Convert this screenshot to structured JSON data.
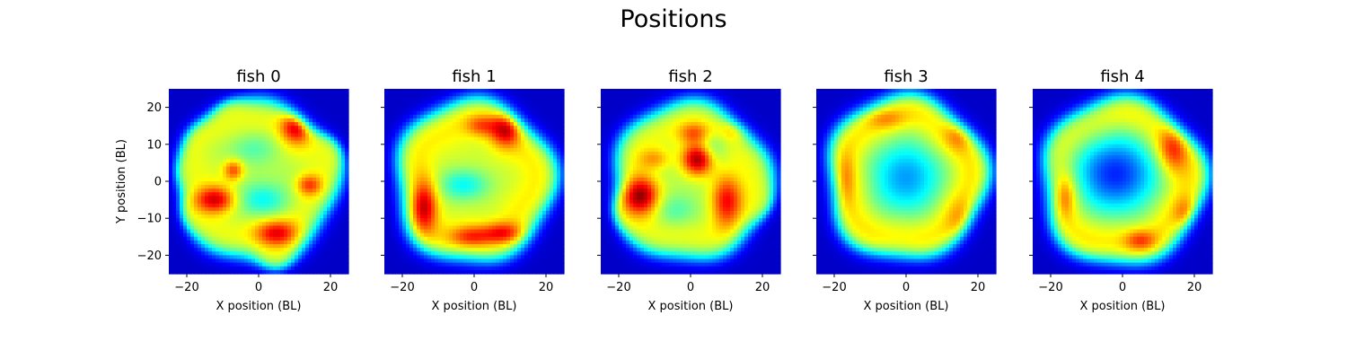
{
  "title": "Positions",
  "chart_data": {
    "type": "heatmap",
    "colormap": "jet",
    "xlabel": "X position (BL)",
    "ylabel": "Y position (BL)",
    "xlim": [
      -25,
      25
    ],
    "ylim": [
      -25,
      25
    ],
    "xticks": [
      "−20",
      "0",
      "20"
    ],
    "yticks": [
      "20",
      "10",
      "0",
      "−10",
      "−20"
    ],
    "xtick_values": [
      -20,
      0,
      20
    ],
    "ytick_values": [
      20,
      10,
      0,
      -10,
      -20
    ],
    "panels": [
      {
        "title": "fish 0",
        "disk": {
          "cx": 0,
          "cy": 0,
          "r": 21.5,
          "level": 0.55,
          "bumps": [
            [
              -18,
              -8,
              3.5
            ],
            [
              -15,
              10,
              3.5
            ],
            [
              19,
              8,
              3.5
            ],
            [
              -8,
              18,
              3.5
            ],
            [
              5,
              -21,
              3.5
            ],
            [
              -20,
              2,
              3.0
            ]
          ]
        },
        "hot": [
          {
            "x": 11,
            "y": 15,
            "level": 0.97,
            "sx": 3,
            "sy": 3
          },
          {
            "x": -12,
            "y": -5,
            "level": 0.88,
            "sx": 4,
            "sy": 2.5
          },
          {
            "x": 5,
            "y": -14,
            "level": 0.85,
            "sx": 4,
            "sy": 2.5
          },
          {
            "x": -7,
            "y": 3,
            "level": 0.8,
            "sx": 2,
            "sy": 2
          },
          {
            "x": 14,
            "y": -1,
            "level": 0.78,
            "sx": 2.5,
            "sy": 2
          }
        ],
        "cool": [
          {
            "x": 1,
            "y": -5,
            "level": 0.38,
            "sx": 5,
            "sy": 3
          },
          {
            "x": -2,
            "y": 9,
            "level": 0.45,
            "sx": 5,
            "sy": 3
          }
        ]
      },
      {
        "title": "fish 1",
        "disk": {
          "cx": 0,
          "cy": 0,
          "r": 22,
          "level": 0.58,
          "bumps": []
        },
        "hot": [
          {
            "x": 9,
            "y": 14,
            "level": 0.9,
            "sx": 3,
            "sy": 3
          },
          {
            "x": -14,
            "y": -7,
            "level": 0.88,
            "sx": 2.5,
            "sy": 5
          },
          {
            "x": 8,
            "y": -14,
            "level": 0.82,
            "sx": 4,
            "sy": 2
          },
          {
            "x": -1,
            "y": -15,
            "level": 0.78,
            "sx": 4,
            "sy": 2
          },
          {
            "x": 2,
            "y": 15,
            "level": 0.75,
            "sx": 3,
            "sy": 2
          }
        ],
        "cool": [
          {
            "x": -3,
            "y": -1,
            "level": 0.38,
            "sx": 5,
            "sy": 3
          }
        ]
      },
      {
        "title": "fish 2",
        "disk": {
          "cx": 0,
          "cy": 0,
          "r": 21.5,
          "level": 0.55,
          "bumps": [
            [
              -18,
              -8,
              3.5
            ],
            [
              19,
              -6,
              3.0
            ]
          ]
        },
        "hot": [
          {
            "x": 2,
            "y": 6,
            "level": 0.98,
            "sx": 3,
            "sy": 3
          },
          {
            "x": -14,
            "y": -4,
            "level": 0.93,
            "sx": 3.5,
            "sy": 3.5
          },
          {
            "x": 10,
            "y": -5,
            "level": 0.84,
            "sx": 3,
            "sy": 5
          },
          {
            "x": 1,
            "y": 13,
            "level": 0.75,
            "sx": 3,
            "sy": 2
          },
          {
            "x": -10,
            "y": 6,
            "level": 0.7,
            "sx": 3,
            "sy": 2
          },
          {
            "x": 13,
            "y": 14,
            "level": 0.72,
            "sx": 3,
            "sy": 2
          }
        ],
        "cool": [
          {
            "x": 6,
            "y": 9,
            "level": 0.42,
            "sx": 3,
            "sy": 3
          },
          {
            "x": -4,
            "y": -8,
            "level": 0.45,
            "sx": 4,
            "sy": 3
          }
        ]
      },
      {
        "title": "fish 3",
        "disk": {
          "cx": 0,
          "cy": 1,
          "r": 22,
          "level": 0.62,
          "bumps": []
        },
        "hot": [
          {
            "x": 15,
            "y": 13,
            "level": 0.8,
            "sx": 3,
            "sy": 3
          },
          {
            "x": 16,
            "y": -11,
            "level": 0.78,
            "sx": 3,
            "sy": 4
          },
          {
            "x": -17,
            "y": 0,
            "level": 0.76,
            "sx": 2,
            "sy": 5
          },
          {
            "x": -6,
            "y": 17,
            "level": 0.74,
            "sx": 4,
            "sy": 2
          }
        ],
        "cool": [
          {
            "x": 0,
            "y": 1,
            "level": 0.28,
            "sx": 8,
            "sy": 8
          }
        ]
      },
      {
        "title": "fish 4",
        "disk": {
          "cx": 0,
          "cy": 0,
          "r": 22.5,
          "level": 0.62,
          "bumps": []
        },
        "hot": [
          {
            "x": 14,
            "y": 9,
            "level": 0.85,
            "sx": 3,
            "sy": 5
          },
          {
            "x": 18,
            "y": -9,
            "level": 0.82,
            "sx": 2.5,
            "sy": 3
          },
          {
            "x": -16,
            "y": -4,
            "level": 0.8,
            "sx": 2,
            "sy": 4
          },
          {
            "x": 5,
            "y": -16,
            "level": 0.8,
            "sx": 3,
            "sy": 2
          }
        ],
        "cool": [
          {
            "x": -2,
            "y": 2,
            "level": 0.16,
            "sx": 9,
            "sy": 8
          }
        ]
      }
    ]
  }
}
